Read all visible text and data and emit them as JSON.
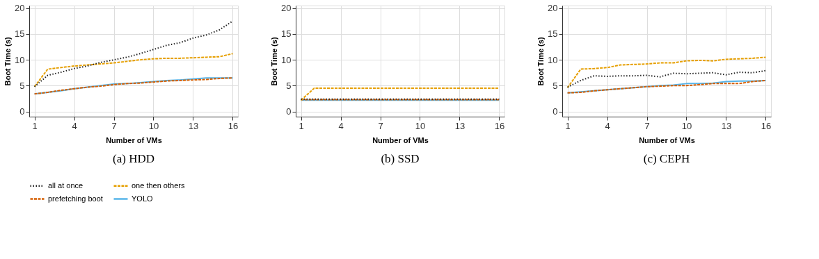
{
  "chart_data": [
    {
      "type": "line",
      "title": "(a)  HDD",
      "xlabel": "Number of VMs",
      "ylabel": "Boot Time (s)",
      "x": [
        1,
        2,
        3,
        4,
        5,
        6,
        7,
        8,
        9,
        10,
        11,
        12,
        13,
        14,
        15,
        16
      ],
      "xlim": [
        0.6,
        16.4
      ],
      "xticks": [
        1,
        4,
        7,
        10,
        13,
        16
      ],
      "ylim": [
        -1,
        20.5
      ],
      "yticks": [
        0,
        5,
        10,
        15,
        20
      ],
      "grid": true,
      "legend": "bottom",
      "series": [
        {
          "name": "all at once",
          "color": "#222222",
          "line_style": "dotted",
          "values": [
            4.8,
            7.0,
            7.6,
            8.3,
            8.8,
            9.5,
            10.0,
            10.5,
            11.2,
            12.0,
            12.8,
            13.3,
            14.2,
            14.8,
            15.8,
            17.5
          ]
        },
        {
          "name": "one then others",
          "color": "#e69f00",
          "line_style": "dashed",
          "values": [
            4.8,
            8.2,
            8.5,
            8.8,
            9.0,
            9.2,
            9.4,
            9.7,
            10.0,
            10.2,
            10.3,
            10.3,
            10.4,
            10.5,
            10.6,
            11.2
          ]
        },
        {
          "name": "prefetching boot",
          "color": "#d55e00",
          "line_style": "dashed",
          "values": [
            3.4,
            3.7,
            4.1,
            4.4,
            4.7,
            4.9,
            5.2,
            5.4,
            5.5,
            5.7,
            5.9,
            6.0,
            6.1,
            6.2,
            6.4,
            6.5
          ]
        },
        {
          "name": "YOLO",
          "color": "#56b4e9",
          "line_style": "solid",
          "values": [
            3.4,
            3.7,
            4.0,
            4.4,
            4.7,
            5.0,
            5.3,
            5.4,
            5.6,
            5.8,
            6.0,
            6.1,
            6.3,
            6.5,
            6.5,
            6.5
          ]
        }
      ]
    },
    {
      "type": "line",
      "title": "(b)  SSD",
      "xlabel": "Number of VMs",
      "ylabel": "Boot Time (s)",
      "x": [
        1,
        2,
        3,
        4,
        5,
        6,
        7,
        8,
        9,
        10,
        11,
        12,
        13,
        14,
        15,
        16
      ],
      "xlim": [
        0.6,
        16.4
      ],
      "xticks": [
        1,
        4,
        7,
        10,
        13,
        16
      ],
      "ylim": [
        -1,
        20.5
      ],
      "yticks": [
        0,
        5,
        10,
        15,
        20
      ],
      "grid": true,
      "legend": "bottom",
      "series": [
        {
          "name": "all at once",
          "color": "#222222",
          "line_style": "dotted",
          "values": [
            2.4,
            2.4,
            2.4,
            2.4,
            2.4,
            2.4,
            2.4,
            2.4,
            2.4,
            2.4,
            2.4,
            2.4,
            2.4,
            2.4,
            2.4,
            2.4
          ]
        },
        {
          "name": "one then others",
          "color": "#e69f00",
          "line_style": "dashed",
          "values": [
            2.2,
            4.5,
            4.5,
            4.5,
            4.5,
            4.5,
            4.5,
            4.5,
            4.5,
            4.5,
            4.5,
            4.5,
            4.5,
            4.5,
            4.5,
            4.5
          ]
        },
        {
          "name": "prefetching boot",
          "color": "#d55e00",
          "line_style": "dashed",
          "values": [
            2.3,
            2.3,
            2.3,
            2.3,
            2.3,
            2.3,
            2.3,
            2.3,
            2.3,
            2.3,
            2.3,
            2.3,
            2.3,
            2.3,
            2.3,
            2.3
          ]
        },
        {
          "name": "YOLO",
          "color": "#56b4e9",
          "line_style": "solid",
          "values": [
            2.2,
            2.2,
            2.2,
            2.2,
            2.2,
            2.2,
            2.2,
            2.2,
            2.2,
            2.2,
            2.2,
            2.2,
            2.2,
            2.2,
            2.2,
            2.2
          ]
        }
      ]
    },
    {
      "type": "line",
      "title": "(c)  CEPH",
      "xlabel": "Number of VMs",
      "ylabel": "Boot Time (s)",
      "x": [
        1,
        2,
        3,
        4,
        5,
        6,
        7,
        8,
        9,
        10,
        11,
        12,
        13,
        14,
        15,
        16
      ],
      "xlim": [
        0.6,
        16.4
      ],
      "xticks": [
        1,
        4,
        7,
        10,
        13,
        16
      ],
      "ylim": [
        -1,
        20.5
      ],
      "yticks": [
        0,
        5,
        10,
        15,
        20
      ],
      "grid": true,
      "legend": "bottom",
      "series": [
        {
          "name": "all at once",
          "color": "#222222",
          "line_style": "dotted",
          "values": [
            4.7,
            6.0,
            6.9,
            6.8,
            6.9,
            6.9,
            7.0,
            6.7,
            7.4,
            7.3,
            7.4,
            7.5,
            7.1,
            7.6,
            7.5,
            7.9
          ]
        },
        {
          "name": "one then others",
          "color": "#e69f00",
          "line_style": "dashed",
          "values": [
            4.6,
            8.2,
            8.3,
            8.5,
            9.0,
            9.1,
            9.2,
            9.4,
            9.4,
            9.8,
            9.9,
            9.8,
            10.1,
            10.2,
            10.3,
            10.5
          ]
        },
        {
          "name": "prefetching boot",
          "color": "#d55e00",
          "line_style": "dashed",
          "values": [
            3.6,
            3.7,
            4.0,
            4.2,
            4.4,
            4.6,
            4.8,
            4.9,
            5.0,
            5.0,
            5.2,
            5.4,
            5.4,
            5.4,
            5.8,
            6.0
          ]
        },
        {
          "name": "YOLO",
          "color": "#56b4e9",
          "line_style": "solid",
          "values": [
            3.6,
            3.8,
            4.0,
            4.2,
            4.4,
            4.6,
            4.8,
            5.0,
            5.1,
            5.4,
            5.4,
            5.5,
            5.8,
            5.9,
            5.9,
            6.0
          ]
        }
      ]
    }
  ]
}
